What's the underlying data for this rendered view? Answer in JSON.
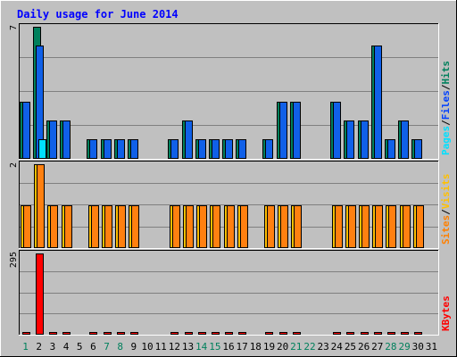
{
  "chart_data": {
    "type": "bar",
    "title": "Daily usage for June 2014",
    "days": [
      "1",
      "2",
      "3",
      "4",
      "5",
      "6",
      "7",
      "8",
      "9",
      "10",
      "11",
      "12",
      "13",
      "14",
      "15",
      "16",
      "17",
      "18",
      "19",
      "20",
      "21",
      "22",
      "23",
      "24",
      "25",
      "26",
      "27",
      "28",
      "29",
      "30",
      "31"
    ],
    "weekend_days": [
      "1",
      "7",
      "8",
      "14",
      "15",
      "21",
      "22",
      "28",
      "29"
    ],
    "panels": [
      {
        "name": "hits-files-pages",
        "max_label": "7",
        "ymax": 7,
        "legend": [
          {
            "label": "Pages",
            "color": "#00e0ff"
          },
          {
            "label": "/",
            "color": "#000000"
          },
          {
            "label": "Files",
            "color": "#0040ff"
          },
          {
            "label": "/",
            "color": "#000000"
          },
          {
            "label": "Hits",
            "color": "#00805c"
          }
        ],
        "series": [
          {
            "name": "Hits",
            "color": "#00805c",
            "values": [
              3,
              7,
              2,
              2,
              0,
              1,
              1,
              1,
              1,
              0,
              0,
              1,
              2,
              1,
              1,
              1,
              1,
              0,
              1,
              3,
              3,
              0,
              0,
              3,
              2,
              2,
              6,
              1,
              2,
              1,
              0
            ]
          },
          {
            "name": "Files",
            "color": "#1060e8",
            "values": [
              3,
              6,
              2,
              2,
              0,
              1,
              1,
              1,
              1,
              0,
              0,
              1,
              2,
              1,
              1,
              1,
              1,
              0,
              1,
              3,
              3,
              0,
              0,
              3,
              2,
              2,
              6,
              1,
              2,
              1,
              0
            ]
          },
          {
            "name": "Pages",
            "color": "#00e0ff",
            "values": [
              0,
              1,
              0,
              0,
              0,
              0,
              0,
              0,
              0,
              0,
              0,
              0,
              0,
              0,
              0,
              0,
              0,
              0,
              0,
              0,
              0,
              0,
              0,
              0,
              0,
              0,
              0,
              0,
              0,
              0,
              0
            ]
          }
        ]
      },
      {
        "name": "visits-sites",
        "max_label": "2",
        "ymax": 2,
        "legend": [
          {
            "label": "Sites",
            "color": "#ff8000"
          },
          {
            "label": "/",
            "color": "#000000"
          },
          {
            "label": "Visits",
            "color": "#ffc000"
          }
        ],
        "series": [
          {
            "name": "Visits",
            "color": "#ffc000",
            "values": [
              1,
              2,
              1,
              1,
              0,
              1,
              1,
              1,
              1,
              0,
              0,
              1,
              1,
              1,
              1,
              1,
              1,
              0,
              1,
              1,
              1,
              0,
              0,
              1,
              1,
              1,
              1,
              1,
              1,
              1,
              0
            ]
          },
          {
            "name": "Sites",
            "color": "#ff8010",
            "values": [
              1,
              2,
              1,
              1,
              0,
              1,
              1,
              1,
              1,
              0,
              0,
              1,
              1,
              1,
              1,
              1,
              1,
              0,
              1,
              1,
              1,
              0,
              0,
              1,
              1,
              1,
              1,
              1,
              1,
              1,
              0
            ]
          }
        ]
      },
      {
        "name": "kbytes",
        "max_label": "295",
        "ymax": 295,
        "legend": [
          {
            "label": "KBytes",
            "color": "#ff0000"
          }
        ],
        "series": [
          {
            "name": "KBytes",
            "color": "#ff0000",
            "values": [
              1,
              295,
              1,
              1,
              0,
              1,
              1,
              1,
              1,
              0,
              0,
              1,
              1,
              1,
              1,
              1,
              1,
              0,
              1,
              1,
              1,
              0,
              0,
              1,
              1,
              1,
              1,
              1,
              1,
              1,
              0
            ]
          }
        ]
      }
    ]
  }
}
